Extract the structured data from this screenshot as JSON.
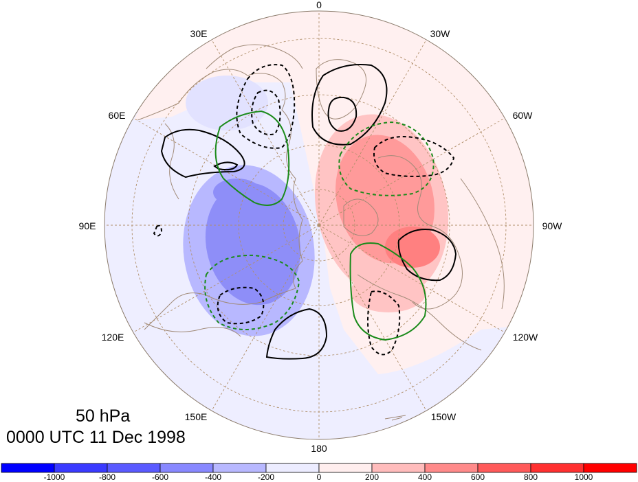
{
  "map": {
    "projection": "north-polar-stereographic",
    "level_label": "50 hPa",
    "time_label": "0000 UTC 11 Dec 1998",
    "longitude_labels": [
      "0",
      "30W",
      "60W",
      "90W",
      "120W",
      "150W",
      "180",
      "150E",
      "120E",
      "90E",
      "60E",
      "30E"
    ],
    "colors": {
      "coastline": "#a08a78",
      "graticule": "#b08f6a",
      "contour_solid": "#000000",
      "contour_dashed": "#000000",
      "contour_green": "#1a8a1a"
    }
  },
  "colorbar": {
    "ticks": [
      "-1000",
      "-800",
      "-600",
      "-400",
      "-200",
      "0",
      "200",
      "400",
      "600",
      "800",
      "1000"
    ],
    "colors": [
      "#0000ff",
      "#3a3aff",
      "#5a5aff",
      "#8888ff",
      "#b8b8ff",
      "#ececff",
      "#ffeeee",
      "#ffbcbc",
      "#ff8a8a",
      "#ff5a5a",
      "#ff3030",
      "#ff0000"
    ]
  }
}
